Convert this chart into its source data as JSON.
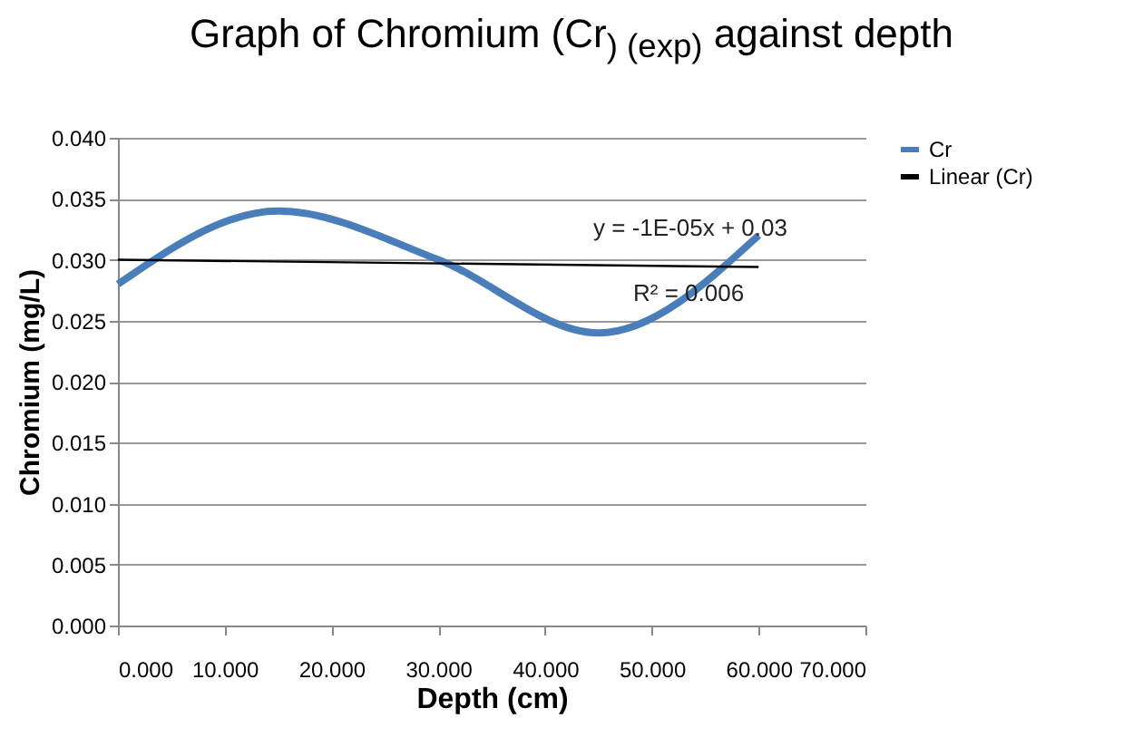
{
  "chart_data": {
    "type": "line",
    "title": "Graph of Chromium (Cr$_{) (exp)}$ against depth",
    "xlabel": "Depth (cm)",
    "ylabel": "Chromium (mg/L)",
    "series": [
      {
        "name": "Cr",
        "color": "#4a7ebb",
        "x": [
          0,
          15,
          30,
          45,
          60
        ],
        "values": [
          0.028,
          0.034,
          0.03,
          0.024,
          0.032
        ]
      },
      {
        "name": "Linear (Cr)",
        "type": "line",
        "color": "#000000",
        "x": [
          0,
          60
        ],
        "values": [
          0.03,
          0.0294
        ]
      }
    ],
    "annotations": [
      "y = -1E-05x + 0.03",
      "R² = 0.006"
    ],
    "xlim": [
      0,
      70
    ],
    "xticks": [
      {
        "value": 0,
        "label": "0.000"
      },
      {
        "value": 10,
        "label": "10.000"
      },
      {
        "value": 20,
        "label": "20.000"
      },
      {
        "value": 30,
        "label": "30.000"
      },
      {
        "value": 40,
        "label": "40.000"
      },
      {
        "value": 50,
        "label": "50.000"
      },
      {
        "value": 60,
        "label": "60.000"
      },
      {
        "value": 70,
        "label": "70.000"
      }
    ],
    "ylim": [
      0,
      0.04
    ],
    "yticks": [
      {
        "value": 0,
        "label": "0.000"
      },
      {
        "value": 0.005,
        "label": "0.005"
      },
      {
        "value": 0.01,
        "label": "0.010"
      },
      {
        "value": 0.015,
        "label": "0.015"
      },
      {
        "value": 0.02,
        "label": "0.020"
      },
      {
        "value": 0.025,
        "label": "0.025"
      },
      {
        "value": 0.03,
        "label": "0.030"
      },
      {
        "value": 0.035,
        "label": "0.035"
      },
      {
        "value": 0.04,
        "label": "0.040"
      }
    ],
    "grid": "y",
    "legend": "right",
    "marker": "none"
  }
}
